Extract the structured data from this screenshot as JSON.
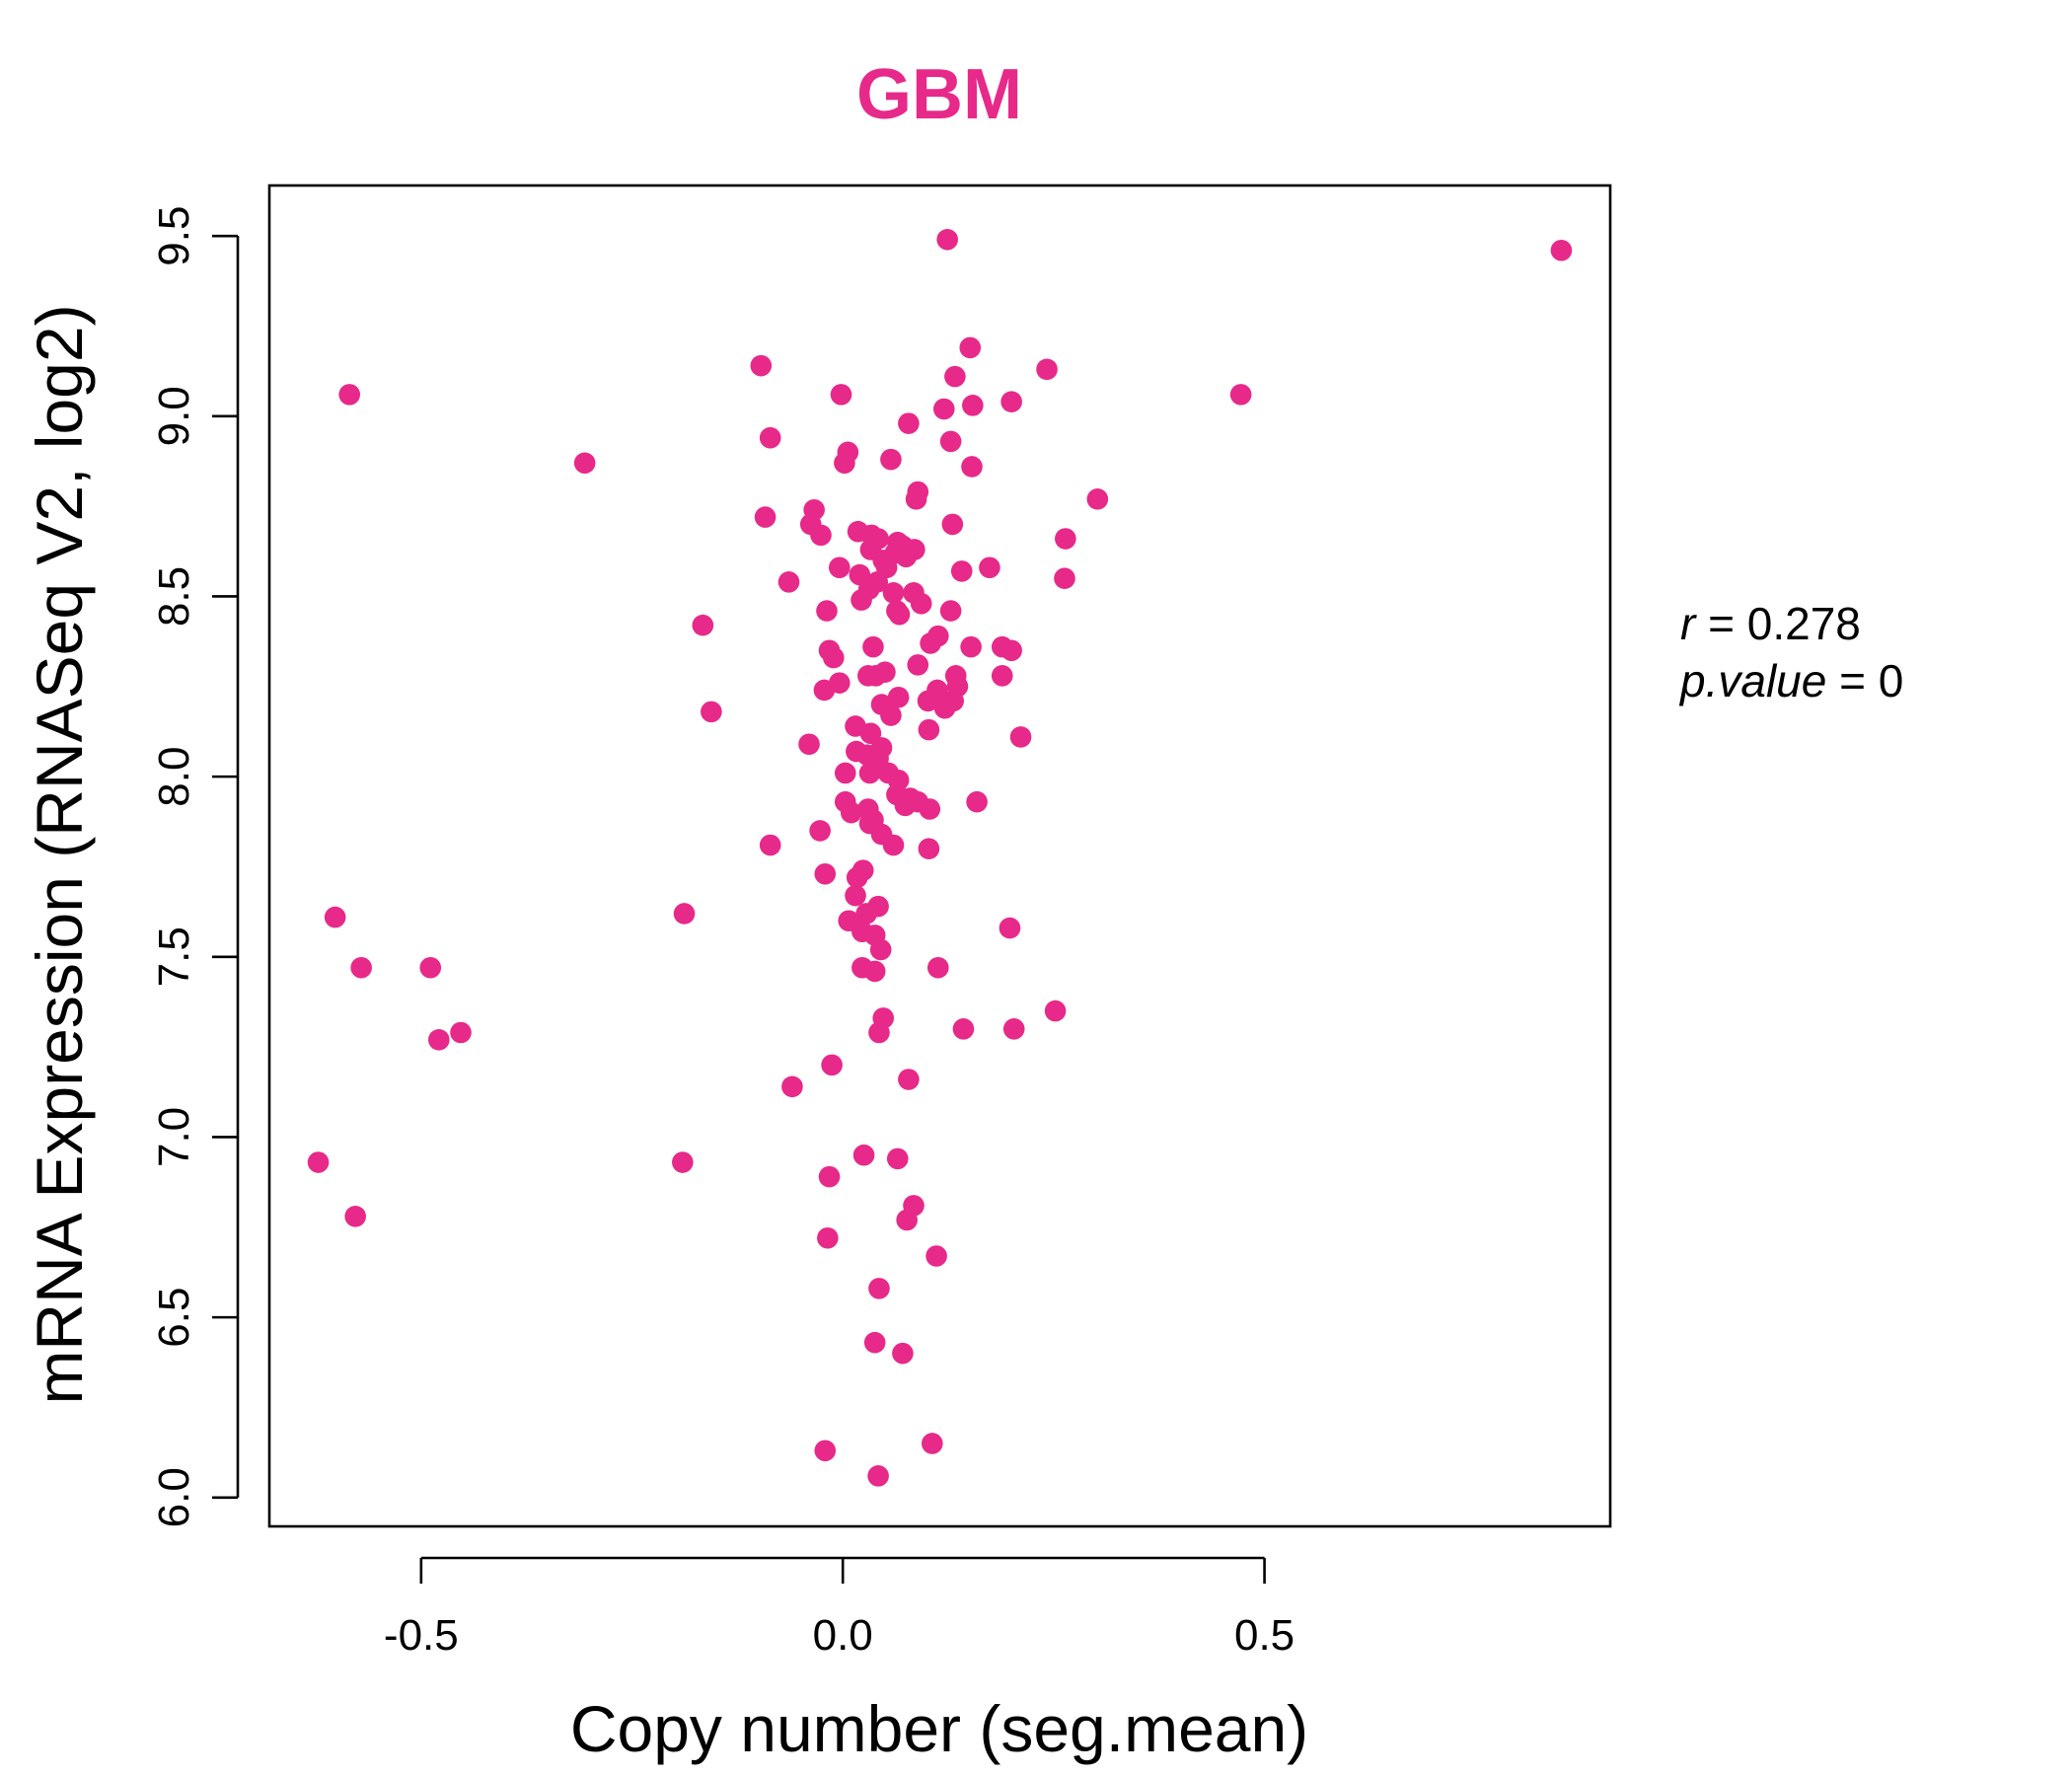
{
  "chart_data": {
    "type": "scatter",
    "title": "GBM",
    "xlabel": "Copy number (seg.mean)",
    "ylabel": "mRNA Expression (RNASeq V2, log2)",
    "xlim": [
      -0.68,
      0.91
    ],
    "ylim": [
      5.92,
      9.64
    ],
    "xticks": [
      -0.5,
      0.0,
      0.5
    ],
    "xtick_labels": [
      "-0.5",
      "0.0",
      "0.5"
    ],
    "yticks": [
      6.0,
      6.5,
      7.0,
      7.5,
      8.0,
      8.5,
      9.0,
      9.5
    ],
    "ytick_labels": [
      "6.0",
      "6.5",
      "7.0",
      "7.5",
      "8.0",
      "8.5",
      "9.0",
      "9.5"
    ],
    "grid": false,
    "point_color": "#E7298A",
    "title_color": "#E7298A",
    "stats": {
      "r_label": "r",
      "r_value": "0.278",
      "p_label": "p.value",
      "p_value": "0"
    },
    "points": [
      {
        "x": 0.124,
        "y": 9.49
      },
      {
        "x": 0.852,
        "y": 9.46
      },
      {
        "x": -0.585,
        "y": 9.06
      },
      {
        "x": 0.472,
        "y": 9.06
      },
      {
        "x": -0.097,
        "y": 9.14
      },
      {
        "x": 0.151,
        "y": 9.19
      },
      {
        "x": 0.242,
        "y": 9.13
      },
      {
        "x": 0.133,
        "y": 9.11
      },
      {
        "x": -0.002,
        "y": 9.06
      },
      {
        "x": 0.2,
        "y": 9.04
      },
      {
        "x": 0.154,
        "y": 9.03
      },
      {
        "x": 0.12,
        "y": 9.02
      },
      {
        "x": 0.078,
        "y": 8.98
      },
      {
        "x": -0.086,
        "y": 8.94
      },
      {
        "x": 0.128,
        "y": 8.93
      },
      {
        "x": 0.006,
        "y": 8.9
      },
      {
        "x": 0.057,
        "y": 8.88
      },
      {
        "x": -0.306,
        "y": 8.87
      },
      {
        "x": 0.002,
        "y": 8.87
      },
      {
        "x": 0.153,
        "y": 8.86
      },
      {
        "x": 0.089,
        "y": 8.79
      },
      {
        "x": 0.087,
        "y": 8.77
      },
      {
        "x": 0.302,
        "y": 8.77
      },
      {
        "x": -0.034,
        "y": 8.74
      },
      {
        "x": -0.092,
        "y": 8.72
      },
      {
        "x": -0.038,
        "y": 8.7
      },
      {
        "x": 0.13,
        "y": 8.7
      },
      {
        "x": 0.018,
        "y": 8.68
      },
      {
        "x": 0.034,
        "y": 8.67
      },
      {
        "x": -0.026,
        "y": 8.67
      },
      {
        "x": 0.042,
        "y": 8.66
      },
      {
        "x": 0.264,
        "y": 8.66
      },
      {
        "x": 0.065,
        "y": 8.65
      },
      {
        "x": 0.071,
        "y": 8.64
      },
      {
        "x": 0.085,
        "y": 8.63
      },
      {
        "x": 0.033,
        "y": 8.63
      },
      {
        "x": 0.062,
        "y": 8.62
      },
      {
        "x": 0.075,
        "y": 8.61
      },
      {
        "x": 0.048,
        "y": 8.6
      },
      {
        "x": 0.052,
        "y": 8.58
      },
      {
        "x": -0.004,
        "y": 8.58
      },
      {
        "x": 0.174,
        "y": 8.58
      },
      {
        "x": 0.141,
        "y": 8.57
      },
      {
        "x": 0.02,
        "y": 8.56
      },
      {
        "x": 0.263,
        "y": 8.55
      },
      {
        "x": -0.064,
        "y": 8.54
      },
      {
        "x": 0.041,
        "y": 8.54
      },
      {
        "x": 0.031,
        "y": 8.52
      },
      {
        "x": 0.06,
        "y": 8.51
      },
      {
        "x": 0.084,
        "y": 8.51
      },
      {
        "x": 0.022,
        "y": 8.49
      },
      {
        "x": 0.093,
        "y": 8.48
      },
      {
        "x": 0.064,
        "y": 8.46
      },
      {
        "x": 0.128,
        "y": 8.46
      },
      {
        "x": -0.019,
        "y": 8.46
      },
      {
        "x": 0.067,
        "y": 8.45
      },
      {
        "x": -0.166,
        "y": 8.42
      },
      {
        "x": 0.113,
        "y": 8.39
      },
      {
        "x": 0.104,
        "y": 8.37
      },
      {
        "x": 0.152,
        "y": 8.36
      },
      {
        "x": 0.189,
        "y": 8.36
      },
      {
        "x": 0.036,
        "y": 8.36
      },
      {
        "x": 0.2,
        "y": 8.35
      },
      {
        "x": -0.016,
        "y": 8.35
      },
      {
        "x": -0.011,
        "y": 8.33
      },
      {
        "x": 0.089,
        "y": 8.31
      },
      {
        "x": 0.05,
        "y": 8.29
      },
      {
        "x": 0.03,
        "y": 8.28
      },
      {
        "x": 0.134,
        "y": 8.28
      },
      {
        "x": 0.039,
        "y": 8.28
      },
      {
        "x": 0.189,
        "y": 8.28
      },
      {
        "x": -0.004,
        "y": 8.26
      },
      {
        "x": 0.136,
        "y": 8.25
      },
      {
        "x": 0.112,
        "y": 8.24
      },
      {
        "x": -0.022,
        "y": 8.24
      },
      {
        "x": 0.066,
        "y": 8.22
      },
      {
        "x": 0.101,
        "y": 8.21
      },
      {
        "x": 0.131,
        "y": 8.21
      },
      {
        "x": 0.046,
        "y": 8.2
      },
      {
        "x": 0.121,
        "y": 8.19
      },
      {
        "x": -0.156,
        "y": 8.18
      },
      {
        "x": 0.057,
        "y": 8.17
      },
      {
        "x": 0.015,
        "y": 8.14
      },
      {
        "x": 0.102,
        "y": 8.13
      },
      {
        "x": 0.033,
        "y": 8.12
      },
      {
        "x": 0.211,
        "y": 8.11
      },
      {
        "x": -0.04,
        "y": 8.09
      },
      {
        "x": 0.046,
        "y": 8.08
      },
      {
        "x": 0.016,
        "y": 8.07
      },
      {
        "x": 0.029,
        "y": 8.06
      },
      {
        "x": 0.042,
        "y": 8.05
      },
      {
        "x": 0.003,
        "y": 8.01
      },
      {
        "x": 0.032,
        "y": 8.01
      },
      {
        "x": 0.054,
        "y": 8.01
      },
      {
        "x": 0.066,
        "y": 7.99
      },
      {
        "x": 0.064,
        "y": 7.95
      },
      {
        "x": 0.08,
        "y": 7.94
      },
      {
        "x": 0.003,
        "y": 7.93
      },
      {
        "x": 0.159,
        "y": 7.93
      },
      {
        "x": 0.089,
        "y": 7.93
      },
      {
        "x": 0.074,
        "y": 7.92
      },
      {
        "x": 0.103,
        "y": 7.91
      },
      {
        "x": 0.03,
        "y": 7.91
      },
      {
        "x": 0.01,
        "y": 7.9
      },
      {
        "x": 0.036,
        "y": 7.88
      },
      {
        "x": 0.032,
        "y": 7.87
      },
      {
        "x": -0.027,
        "y": 7.85
      },
      {
        "x": 0.046,
        "y": 7.84
      },
      {
        "x": -0.086,
        "y": 7.81
      },
      {
        "x": 0.06,
        "y": 7.81
      },
      {
        "x": 0.102,
        "y": 7.8
      },
      {
        "x": 0.024,
        "y": 7.74
      },
      {
        "x": -0.021,
        "y": 7.73
      },
      {
        "x": 0.017,
        "y": 7.72
      },
      {
        "x": 0.015,
        "y": 7.67
      },
      {
        "x": 0.042,
        "y": 7.64
      },
      {
        "x": -0.188,
        "y": 7.62
      },
      {
        "x": 0.028,
        "y": 7.62
      },
      {
        "x": -0.602,
        "y": 7.61
      },
      {
        "x": 0.007,
        "y": 7.6
      },
      {
        "x": 0.023,
        "y": 7.57
      },
      {
        "x": 0.198,
        "y": 7.58
      },
      {
        "x": 0.038,
        "y": 7.56
      },
      {
        "x": 0.045,
        "y": 7.52
      },
      {
        "x": -0.571,
        "y": 7.47
      },
      {
        "x": -0.489,
        "y": 7.47
      },
      {
        "x": 0.113,
        "y": 7.47
      },
      {
        "x": 0.023,
        "y": 7.47
      },
      {
        "x": 0.038,
        "y": 7.46
      },
      {
        "x": 0.252,
        "y": 7.35
      },
      {
        "x": 0.048,
        "y": 7.33
      },
      {
        "x": 0.143,
        "y": 7.3
      },
      {
        "x": 0.203,
        "y": 7.3
      },
      {
        "x": -0.453,
        "y": 7.29
      },
      {
        "x": 0.043,
        "y": 7.29
      },
      {
        "x": -0.479,
        "y": 7.27
      },
      {
        "x": -0.013,
        "y": 7.2
      },
      {
        "x": 0.078,
        "y": 7.16
      },
      {
        "x": -0.06,
        "y": 7.14
      },
      {
        "x": 0.025,
        "y": 6.95
      },
      {
        "x": 0.065,
        "y": 6.94
      },
      {
        "x": -0.622,
        "y": 6.93
      },
      {
        "x": -0.19,
        "y": 6.93
      },
      {
        "x": -0.016,
        "y": 6.89
      },
      {
        "x": 0.084,
        "y": 6.81
      },
      {
        "x": -0.578,
        "y": 6.78
      },
      {
        "x": 0.076,
        "y": 6.77
      },
      {
        "x": -0.018,
        "y": 6.72
      },
      {
        "x": 0.111,
        "y": 6.67
      },
      {
        "x": 0.043,
        "y": 6.58
      },
      {
        "x": 0.038,
        "y": 6.43
      },
      {
        "x": 0.071,
        "y": 6.4
      },
      {
        "x": 0.106,
        "y": 6.15
      },
      {
        "x": -0.021,
        "y": 6.13
      },
      {
        "x": 0.042,
        "y": 6.06
      }
    ]
  }
}
